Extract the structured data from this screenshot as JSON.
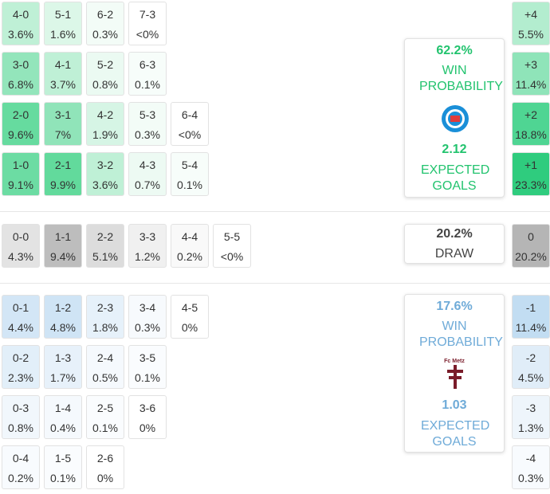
{
  "home": {
    "rows": [
      [
        {
          "score": "4-0",
          "pct": "3.6%",
          "color": "#bff0d6"
        },
        {
          "score": "5-1",
          "pct": "1.6%",
          "color": "#dcf7e8"
        },
        {
          "score": "6-2",
          "pct": "0.3%",
          "color": "#f3fcf7"
        },
        {
          "score": "7-3",
          "pct": "<0%",
          "color": "#ffffff"
        }
      ],
      [
        {
          "score": "3-0",
          "pct": "6.8%",
          "color": "#93e5bb"
        },
        {
          "score": "4-1",
          "pct": "3.7%",
          "color": "#bff0d6"
        },
        {
          "score": "5-2",
          "pct": "0.8%",
          "color": "#ebfaf2"
        },
        {
          "score": "6-3",
          "pct": "0.1%",
          "color": "#f7fdfa"
        }
      ],
      [
        {
          "score": "2-0",
          "pct": "9.6%",
          "color": "#66db9f"
        },
        {
          "score": "3-1",
          "pct": "7%",
          "color": "#90e4b9"
        },
        {
          "score": "4-2",
          "pct": "1.9%",
          "color": "#d6f5e5"
        },
        {
          "score": "5-3",
          "pct": "0.3%",
          "color": "#f3fcf7"
        },
        {
          "score": "6-4",
          "pct": "<0%",
          "color": "#ffffff"
        }
      ],
      [
        {
          "score": "1-0",
          "pct": "9.1%",
          "color": "#6cdca3"
        },
        {
          "score": "2-1",
          "pct": "9.9%",
          "color": "#62da9c"
        },
        {
          "score": "3-2",
          "pct": "3.6%",
          "color": "#bff0d6"
        },
        {
          "score": "4-3",
          "pct": "0.7%",
          "color": "#edfaf3"
        },
        {
          "score": "5-4",
          "pct": "0.1%",
          "color": "#f7fdfa"
        }
      ]
    ],
    "diff": [
      {
        "label": "+4",
        "pct": "5.5%",
        "color": "#b3edcf"
      },
      {
        "label": "+3",
        "pct": "11.4%",
        "color": "#8fe4b9"
      },
      {
        "label": "+2",
        "pct": "18.8%",
        "color": "#4fd593"
      },
      {
        "label": "+1",
        "pct": "23.3%",
        "color": "#2fcc7e"
      }
    ],
    "card": {
      "win_pct": "62.2%",
      "win_label": "WIN PROBABILITY",
      "xg": "2.12",
      "xg_label": "EXPECTED GOALS"
    }
  },
  "draw": {
    "rows": [
      [
        {
          "score": "0-0",
          "pct": "4.3%",
          "color": "#e3e3e3"
        },
        {
          "score": "1-1",
          "pct": "9.4%",
          "color": "#bdbdbd"
        },
        {
          "score": "2-2",
          "pct": "5.1%",
          "color": "#dcdcdc"
        },
        {
          "score": "3-3",
          "pct": "1.2%",
          "color": "#f0f0f0"
        },
        {
          "score": "4-4",
          "pct": "0.2%",
          "color": "#f9f9f9"
        },
        {
          "score": "5-5",
          "pct": "<0%",
          "color": "#ffffff"
        }
      ]
    ],
    "diff": [
      {
        "label": "0",
        "pct": "20.2%",
        "color": "#b5b5b5"
      }
    ],
    "card": {
      "win_pct": "20.2%",
      "win_label": "DRAW"
    }
  },
  "away": {
    "rows": [
      [
        {
          "score": "0-1",
          "pct": "4.4%",
          "color": "#d3e6f6"
        },
        {
          "score": "1-2",
          "pct": "4.8%",
          "color": "#cfe4f5"
        },
        {
          "score": "2-3",
          "pct": "1.8%",
          "color": "#e6f1fa"
        },
        {
          "score": "3-4",
          "pct": "0.3%",
          "color": "#f7fafd"
        },
        {
          "score": "4-5",
          "pct": "0%",
          "color": "#ffffff"
        }
      ],
      [
        {
          "score": "0-2",
          "pct": "2.3%",
          "color": "#e2eff9"
        },
        {
          "score": "1-3",
          "pct": "1.7%",
          "color": "#e7f1fa"
        },
        {
          "score": "2-4",
          "pct": "0.5%",
          "color": "#f5f9fd"
        },
        {
          "score": "3-5",
          "pct": "0.1%",
          "color": "#fafcfe"
        }
      ],
      [
        {
          "score": "0-3",
          "pct": "0.8%",
          "color": "#f1f7fc"
        },
        {
          "score": "1-4",
          "pct": "0.4%",
          "color": "#f5f9fd"
        },
        {
          "score": "2-5",
          "pct": "0.1%",
          "color": "#fafcfe"
        },
        {
          "score": "3-6",
          "pct": "0%",
          "color": "#ffffff"
        }
      ],
      [
        {
          "score": "0-4",
          "pct": "0.2%",
          "color": "#f8fbfe"
        },
        {
          "score": "1-5",
          "pct": "0.1%",
          "color": "#fafcfe"
        },
        {
          "score": "2-6",
          "pct": "0%",
          "color": "#ffffff"
        }
      ]
    ],
    "diff": [
      {
        "label": "-1",
        "pct": "11.4%",
        "color": "#c2ddf2"
      },
      {
        "label": "-2",
        "pct": "4.5%",
        "color": "#e0edf8"
      },
      {
        "label": "-3",
        "pct": "1.3%",
        "color": "#eef5fb"
      },
      {
        "label": "-4",
        "pct": "0.3%",
        "color": "#f8fbfe"
      }
    ],
    "card": {
      "win_pct": "17.6%",
      "win_label": "WIN PROBABILITY",
      "logo_text": "Fc Metz",
      "xg": "1.03",
      "xg_label": "EXPECTED GOALS"
    }
  }
}
